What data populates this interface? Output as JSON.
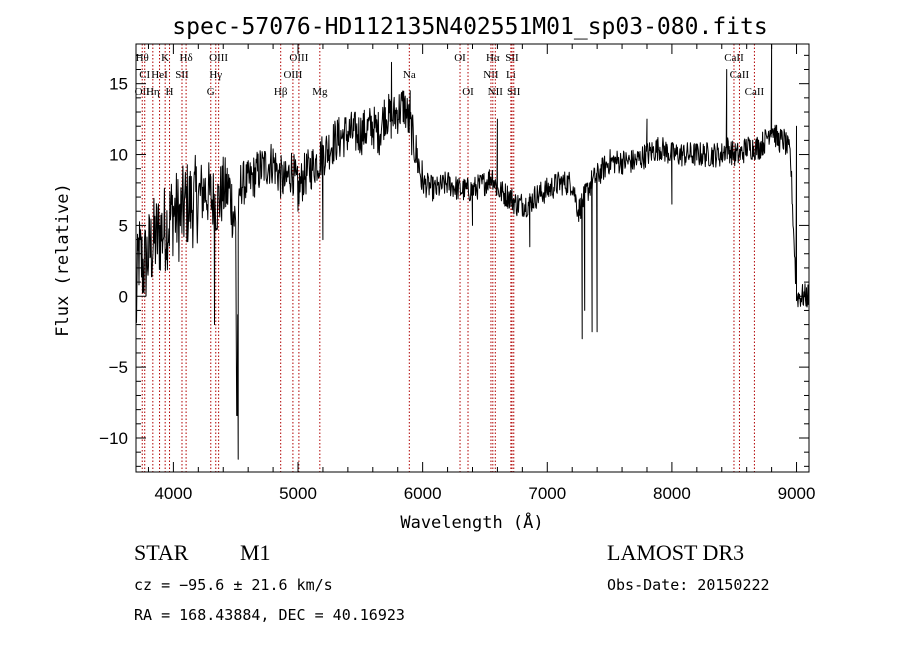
{
  "chart_data": {
    "type": "line",
    "title": "spec-57076-HD112135N402551M01_sp03-080.fits",
    "xlabel": "Wavelength (Å)",
    "ylabel": "Flux (relative)",
    "xlim": [
      3700,
      9100
    ],
    "ylim": [
      -12.4,
      17.8
    ],
    "xticks": [
      4000,
      5000,
      6000,
      7000,
      8000,
      9000
    ],
    "xtick_labels": [
      "4000",
      "5000",
      "6000",
      "7000",
      "8000",
      "9000"
    ],
    "yticks": [
      -10,
      -5,
      0,
      5,
      10,
      15
    ],
    "ytick_labels": [
      "−10",
      "−5",
      "0",
      "5",
      "10",
      "15"
    ],
    "grid": false,
    "line_color": "#000000",
    "marker_color": "#b00000",
    "spectrum_anchors": {
      "x": [
        3700,
        3720,
        3760,
        3800,
        3850,
        3900,
        3950,
        4000,
        4050,
        4100,
        4150,
        4200,
        4250,
        4300,
        4350,
        4400,
        4450,
        4500,
        4510,
        4520,
        4540,
        4600,
        4700,
        4800,
        4850,
        4900,
        4950,
        5000,
        5050,
        5100,
        5150,
        5200,
        5250,
        5300,
        5400,
        5500,
        5600,
        5650,
        5700,
        5750,
        5800,
        5850,
        5900,
        5950,
        6000,
        6100,
        6200,
        6300,
        6400,
        6500,
        6560,
        6600,
        6700,
        6750,
        6800,
        6850,
        6900,
        7000,
        7100,
        7200,
        7250,
        7300,
        7350,
        7400,
        7450,
        7500,
        7600,
        7700,
        7800,
        7900,
        8000,
        8100,
        8200,
        8300,
        8400,
        8440,
        8500,
        8550,
        8600,
        8700,
        8750,
        8800,
        8850,
        8900,
        8950,
        9000
      ],
      "y": [
        -1.5,
        3,
        2,
        3,
        4,
        4.5,
        5,
        6,
        5.5,
        6.5,
        6.5,
        7,
        7.5,
        7,
        6.5,
        7.5,
        7.5,
        5,
        -11.5,
        5,
        8,
        8,
        9,
        9.5,
        8.5,
        8,
        9,
        7.5,
        8.5,
        9,
        9.5,
        10,
        10.5,
        11,
        11.5,
        11.5,
        12,
        11.5,
        13,
        12.5,
        13,
        13.5,
        12,
        10,
        8,
        7.5,
        8,
        7.5,
        7.5,
        8,
        8.5,
        7.5,
        7,
        6.5,
        6.5,
        6.5,
        7,
        7.5,
        8,
        8,
        6,
        7,
        8,
        8.5,
        9,
        9.5,
        9.5,
        9.5,
        10,
        10.5,
        10,
        10,
        10,
        10,
        10,
        10.5,
        10,
        10,
        10.5,
        10.5,
        11,
        12,
        11,
        11,
        10,
        0
      ]
    },
    "spikes": [
      {
        "x": 4330,
        "y": -2
      },
      {
        "x": 4520,
        "y": -11.5
      },
      {
        "x": 5000,
        "y": 6
      },
      {
        "x": 5200,
        "y": 4
      },
      {
        "x": 5750,
        "y": 16.5
      },
      {
        "x": 5900,
        "y": 14.5
      },
      {
        "x": 6400,
        "y": 5
      },
      {
        "x": 6600,
        "y": 12.5
      },
      {
        "x": 6860,
        "y": 3.5
      },
      {
        "x": 7280,
        "y": -3
      },
      {
        "x": 7300,
        "y": -1
      },
      {
        "x": 7360,
        "y": -2.5
      },
      {
        "x": 7400,
        "y": -2.5
      },
      {
        "x": 7800,
        "y": 12.5
      },
      {
        "x": 8000,
        "y": 6.5
      },
      {
        "x": 8440,
        "y": 16
      },
      {
        "x": 8800,
        "y": 17.8
      },
      {
        "x": 9000,
        "y": 12
      }
    ],
    "line_markers": [
      {
        "x": 3750,
        "rows": [
          {
            "text": "Hθ",
            "row": 0
          },
          {
            "text": "OII",
            "row": 2
          }
        ]
      },
      {
        "x": 3770,
        "rows": [
          {
            "text": "CI",
            "row": 1
          }
        ]
      },
      {
        "x": 3835,
        "rows": [
          {
            "text": "Hη",
            "row": 2
          }
        ]
      },
      {
        "x": 3889,
        "rows": [
          {
            "text": "HeI",
            "row": 1
          }
        ]
      },
      {
        "x": 3934,
        "rows": [
          {
            "text": "K",
            "row": 0
          }
        ]
      },
      {
        "x": 3969,
        "rows": [
          {
            "text": "H",
            "row": 2
          }
        ]
      },
      {
        "x": 4069,
        "rows": [
          {
            "text": "SII",
            "row": 1
          }
        ]
      },
      {
        "x": 4102,
        "rows": [
          {
            "text": "Hδ",
            "row": 0
          }
        ]
      },
      {
        "x": 4300,
        "rows": [
          {
            "text": "G",
            "row": 2
          }
        ]
      },
      {
        "x": 4340,
        "rows": [
          {
            "text": "Hγ",
            "row": 1
          }
        ]
      },
      {
        "x": 4363,
        "rows": [
          {
            "text": "OIII",
            "row": 0
          }
        ]
      },
      {
        "x": 4861,
        "rows": [
          {
            "text": "Hβ",
            "row": 2
          }
        ]
      },
      {
        "x": 4959,
        "rows": [
          {
            "text": "OIII",
            "row": 1
          }
        ]
      },
      {
        "x": 5007,
        "rows": [
          {
            "text": "OIII",
            "row": 0
          }
        ]
      },
      {
        "x": 5175,
        "rows": [
          {
            "text": "Mg",
            "row": 2
          }
        ]
      },
      {
        "x": 5893,
        "rows": [
          {
            "text": "Na",
            "row": 1
          }
        ]
      },
      {
        "x": 6300,
        "rows": [
          {
            "text": "OI",
            "row": 0
          }
        ]
      },
      {
        "x": 6364,
        "rows": [
          {
            "text": "OI",
            "row": 2
          }
        ]
      },
      {
        "x": 6548,
        "rows": [
          {
            "text": "NII",
            "row": 1
          }
        ]
      },
      {
        "x": 6563,
        "rows": [
          {
            "text": "Hα",
            "row": 0
          }
        ]
      },
      {
        "x": 6583,
        "rows": [
          {
            "text": "NII",
            "row": 2
          }
        ]
      },
      {
        "x": 6708,
        "rows": [
          {
            "text": "Li",
            "row": 1
          }
        ]
      },
      {
        "x": 6717,
        "rows": [
          {
            "text": "SII",
            "row": 0
          }
        ]
      },
      {
        "x": 6731,
        "rows": [
          {
            "text": "SII",
            "row": 2
          }
        ]
      },
      {
        "x": 8498,
        "rows": [
          {
            "text": "CaII",
            "row": 0
          }
        ]
      },
      {
        "x": 8542,
        "rows": [
          {
            "text": "CaII",
            "row": 1
          }
        ]
      },
      {
        "x": 8662,
        "rows": [
          {
            "text": "CaII",
            "row": 2
          }
        ]
      }
    ]
  },
  "info": {
    "object_class": "STAR",
    "subclass": "M1",
    "redshift": "cz = −95.6 ± 21.6 km/s",
    "coords": "RA = 168.43884, DEC =  40.16923",
    "survey": "LAMOST DR3",
    "obs_date": "Obs-Date: 20150222"
  }
}
